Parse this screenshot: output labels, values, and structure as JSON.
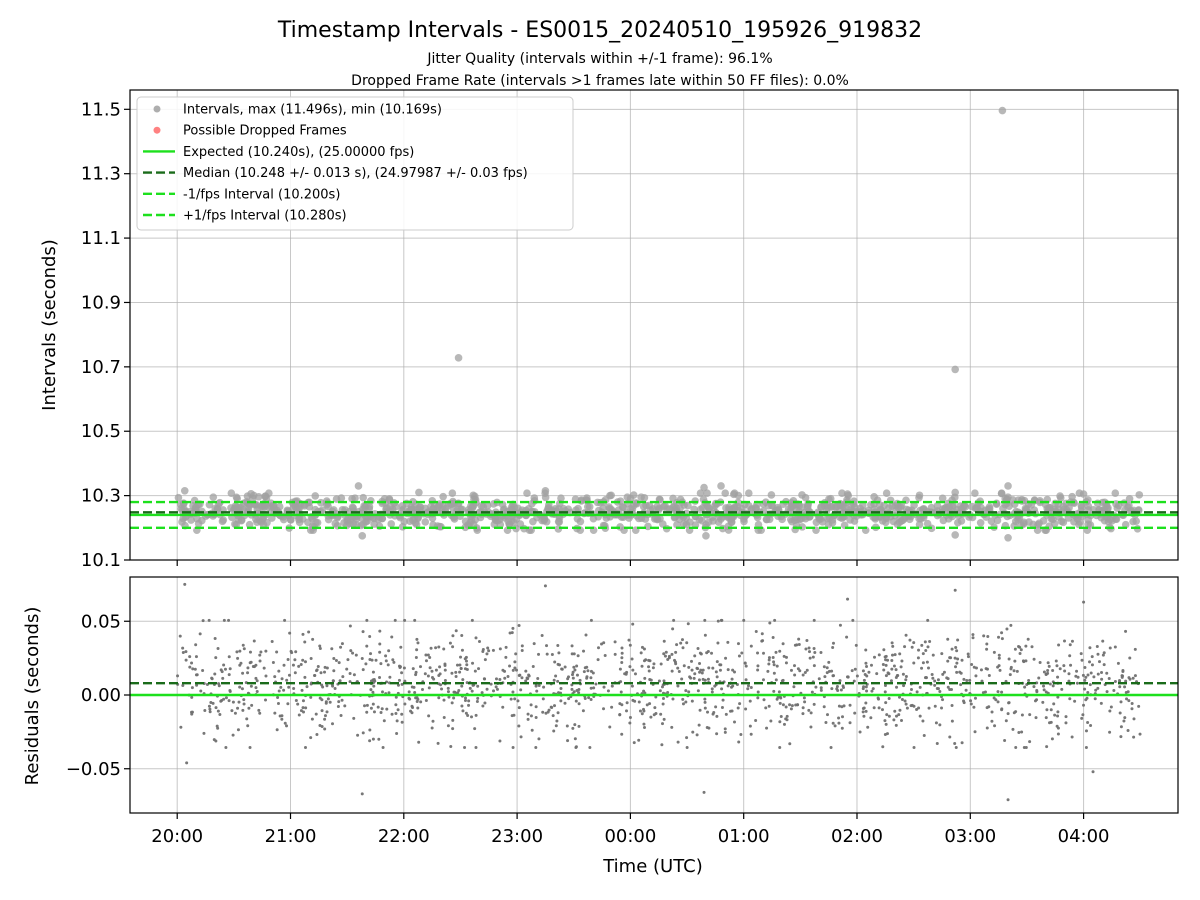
{
  "chart_data": [
    {
      "type": "scatter",
      "title": "Timestamp Intervals - ES0015_20240510_195926_919832",
      "subtitle_lines": [
        "Jitter Quality (intervals within +/-1 frame): 96.1%",
        "Dropped Frame Rate (intervals >1 frames late within 50 FF files): 0.0%"
      ],
      "xlabel": "",
      "ylabel": "Intervals (seconds)",
      "x_is_time": true,
      "xlim": [
        "19:35",
        "04:50"
      ],
      "ylim": [
        10.1,
        11.56
      ],
      "y_ticks": [
        10.1,
        10.3,
        10.5,
        10.7,
        10.9,
        11.1,
        11.3,
        11.5
      ],
      "y_tick_labels": [
        "10.1",
        "10.3",
        "10.5",
        "10.7",
        "10.9",
        "11.1",
        "11.3",
        "11.5"
      ],
      "x_ticks": [
        "20:00",
        "21:00",
        "22:00",
        "23:00",
        "00:00",
        "01:00",
        "02:00",
        "03:00",
        "04:00"
      ],
      "grid": true,
      "legend_position": "upper-left",
      "legend": [
        {
          "label": "Intervals, max (11.496s), min (10.169s)",
          "kind": "marker",
          "color": "#a0a0a0"
        },
        {
          "label": "Possible Dropped Frames",
          "kind": "marker",
          "color": "#ff6b6b"
        },
        {
          "label": "Expected (10.240s), (25.00000 fps)",
          "kind": "line",
          "color": "#1de01d",
          "dash": "solid"
        },
        {
          "label": "Median (10.248 +/- 0.013 s), (24.97987 +/- 0.03 fps)",
          "kind": "line",
          "color": "#1a6b1a",
          "dash": "dashed"
        },
        {
          "label": "-1/fps Interval (10.200s)",
          "kind": "line",
          "color": "#1de01d",
          "dash": "dashed"
        },
        {
          "label": "+1/fps Interval (10.280s)",
          "kind": "line",
          "color": "#1de01d",
          "dash": "dashed"
        }
      ],
      "reference_lines": [
        {
          "y": 10.24,
          "color": "#1de01d",
          "dash": "solid"
        },
        {
          "y": 10.248,
          "color": "#1a6b1a",
          "dash": "dashed"
        },
        {
          "y": 10.2,
          "color": "#1de01d",
          "dash": "dashed"
        },
        {
          "y": 10.28,
          "color": "#1de01d",
          "dash": "dashed"
        }
      ],
      "series": [
        {
          "name": "Intervals, max (11.496s), min (10.169s)",
          "color": "#a0a0a0",
          "time_range": [
            "20:00",
            "04:30"
          ],
          "typical_range": [
            10.2,
            10.3
          ],
          "outliers": [
            {
              "x": "20:04",
              "y": 10.315
            },
            {
              "x": "21:36",
              "y": 10.33
            },
            {
              "x": "21:38",
              "y": 10.175
            },
            {
              "x": "22:29",
              "y": 10.728
            },
            {
              "x": "22:08",
              "y": 10.31
            },
            {
              "x": "23:15",
              "y": 10.315
            },
            {
              "x": "00:39",
              "y": 10.325
            },
            {
              "x": "00:40",
              "y": 10.175
            },
            {
              "x": "00:48",
              "y": 10.33
            },
            {
              "x": "01:55",
              "y": 10.305
            },
            {
              "x": "02:52",
              "y": 10.692
            },
            {
              "x": "02:52",
              "y": 10.31
            },
            {
              "x": "02:52",
              "y": 10.178
            },
            {
              "x": "03:17",
              "y": 11.496
            },
            {
              "x": "03:20",
              "y": 10.33
            },
            {
              "x": "03:20",
              "y": 10.169
            },
            {
              "x": "04:00",
              "y": 10.305
            }
          ]
        }
      ]
    },
    {
      "type": "scatter",
      "title": "",
      "xlabel": "Time (UTC)",
      "ylabel": "Residuals (seconds)",
      "x_is_time": true,
      "xlim": [
        "19:35",
        "04:50"
      ],
      "ylim": [
        -0.08,
        0.08
      ],
      "y_ticks": [
        -0.05,
        0.0,
        0.05
      ],
      "y_tick_labels": [
        "−0.05",
        "0.00",
        "0.05"
      ],
      "x_ticks": [
        "20:00",
        "21:00",
        "22:00",
        "23:00",
        "00:00",
        "01:00",
        "02:00",
        "03:00",
        "04:00"
      ],
      "x_tick_labels": [
        "20:00",
        "21:00",
        "22:00",
        "23:00",
        "00:00",
        "01:00",
        "02:00",
        "03:00",
        "04:00"
      ],
      "grid": true,
      "reference_lines": [
        {
          "y": 0.0,
          "color": "#1de01d",
          "dash": "solid"
        },
        {
          "y": 0.008,
          "color": "#1a6b1a",
          "dash": "dashed"
        }
      ],
      "series": [
        {
          "name": "Residuals",
          "color": "#707070",
          "time_range": [
            "20:00",
            "04:30"
          ],
          "typical_range": [
            -0.03,
            0.045
          ],
          "outliers": [
            {
              "x": "20:04",
              "y": 0.075
            },
            {
              "x": "20:05",
              "y": -0.046
            },
            {
              "x": "21:38",
              "y": -0.067
            },
            {
              "x": "23:15",
              "y": 0.074
            },
            {
              "x": "00:39",
              "y": -0.066
            },
            {
              "x": "01:55",
              "y": 0.065
            },
            {
              "x": "02:52",
              "y": 0.071
            },
            {
              "x": "03:20",
              "y": -0.071
            },
            {
              "x": "04:00",
              "y": 0.063
            },
            {
              "x": "04:05",
              "y": -0.052
            }
          ]
        }
      ]
    }
  ]
}
